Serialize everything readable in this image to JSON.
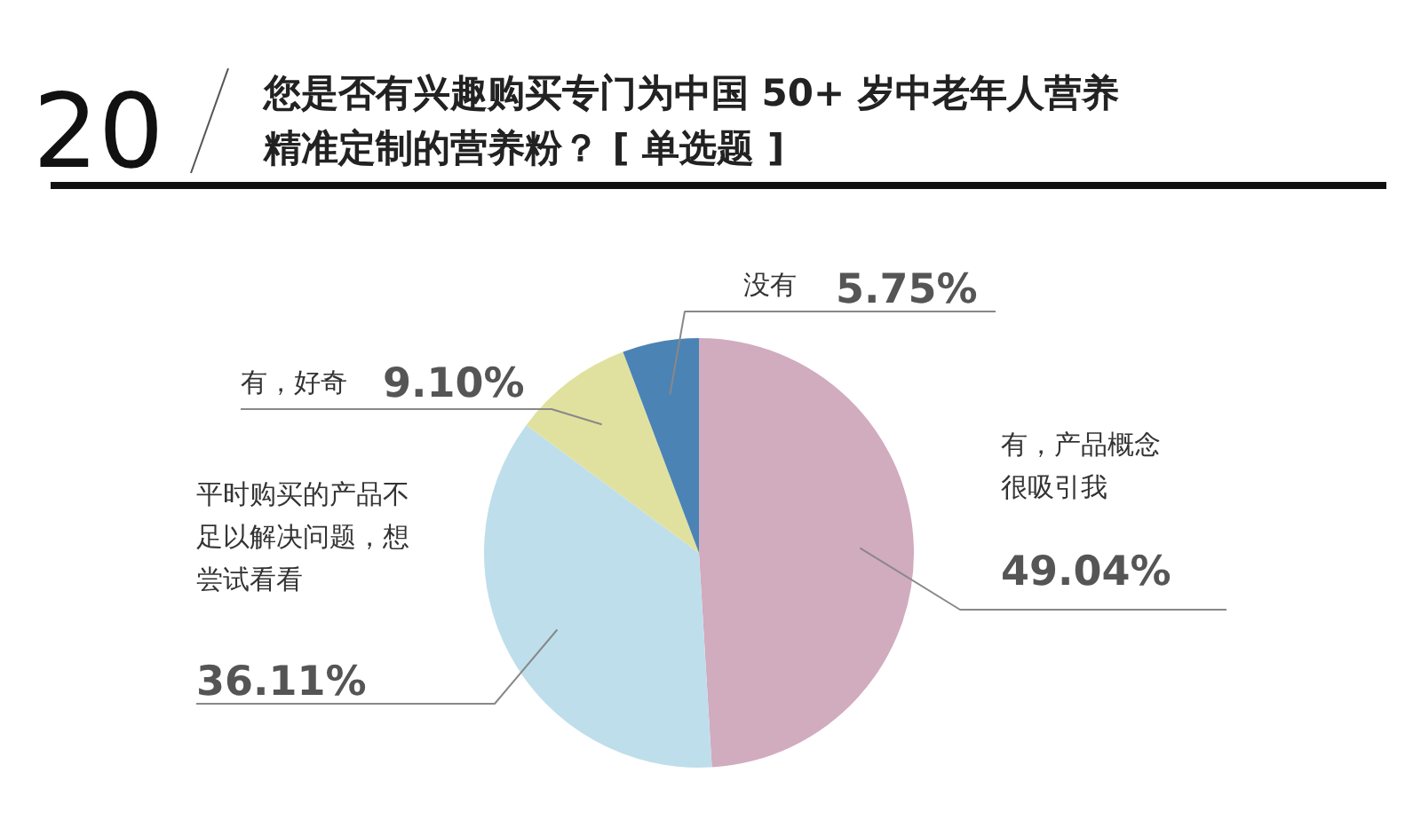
{
  "chart_data": {
    "type": "pie",
    "title": "您是否有兴趣购买专门为中国 50+ 岁中老年人营养精准定制的营养粉？ [ 单选题 ]",
    "annotations": [
      "20"
    ],
    "categories": [
      "有，产品概念很吸引我",
      "平时购买的产品不足以解决问题，想尝试看看",
      "有，好奇",
      "没有"
    ],
    "values": [
      49.04,
      36.11,
      9.1,
      5.75
    ],
    "value_labels": [
      "49.04%",
      "36.11%",
      "9.10%",
      "5.75%"
    ],
    "colors": [
      "#d1abbe",
      "#bedeeb",
      "#e1e19f",
      "#4b83b5"
    ]
  }
}
